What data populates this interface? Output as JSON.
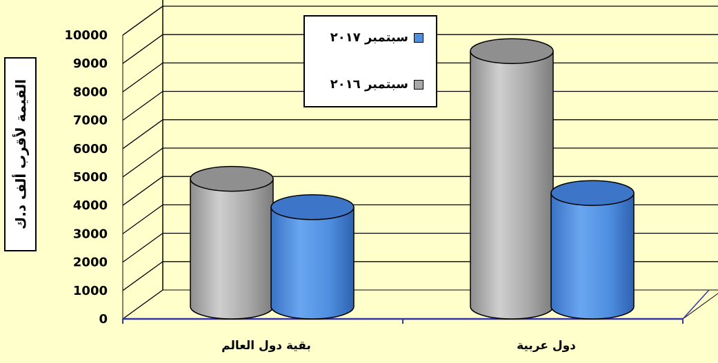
{
  "chart_data": {
    "type": "bar",
    "title": "",
    "xlabel": "",
    "ylabel": "القيمة لأقرب ألف د.ك",
    "ylim": [
      0,
      10000
    ],
    "yticks": [
      "0",
      "1000",
      "2000",
      "3000",
      "4000",
      "5000",
      "6000",
      "7000",
      "8000",
      "9000",
      "10000"
    ],
    "categories": [
      "بقية دول العالم",
      "دول عربية"
    ],
    "series": [
      {
        "name": "سبتمبر ٢٠١٦",
        "color": "#a8a8a8",
        "values": [
          4500,
          9000
        ]
      },
      {
        "name": "سبتمبر ٢٠١٧",
        "color": "#4f8fe0",
        "values": [
          3500,
          4000
        ]
      }
    ],
    "grid": true,
    "legend_position": "top-center"
  },
  "legend_items": [
    {
      "label": "سبتمبر ٢٠١٧",
      "color": "#4f8fe0"
    },
    {
      "label": "سبتمبر ٢٠١٦",
      "color": "#a8a8a8"
    }
  ]
}
